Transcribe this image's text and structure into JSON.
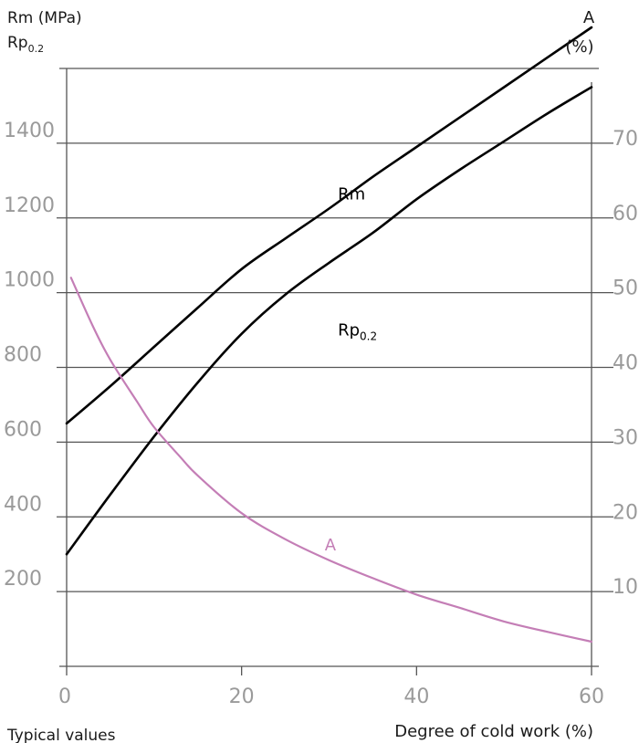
{
  "chart_data": {
    "type": "line",
    "xlabel": "Degree of cold work (%)",
    "footnote": "Typical values",
    "ylabel_left": {
      "line1": "Rm (MPa)",
      "line2_base": "Rp",
      "line2_sub": "0.2"
    },
    "ylabel_right": {
      "line1": "A",
      "line2": "(%)"
    },
    "xlim": [
      0,
      60
    ],
    "ylim_left": [
      0,
      1600
    ],
    "ylim_right": [
      0,
      80
    ],
    "grid": true,
    "x_ticks": [
      0,
      20,
      40,
      60
    ],
    "y_left_ticks": [
      200,
      400,
      600,
      800,
      1000,
      1200,
      1400
    ],
    "y_right_ticks": [
      10,
      20,
      30,
      40,
      50,
      60,
      70
    ],
    "series": [
      {
        "name": "Rm",
        "axis": "left",
        "color": "#000000",
        "label": {
          "base": "Rm",
          "sub": "",
          "x": 31,
          "y": 1250
        },
        "x": [
          0,
          5,
          10,
          15,
          20,
          25,
          30,
          35,
          40,
          45,
          50,
          55,
          60
        ],
        "y": [
          650,
          750,
          855,
          960,
          1063,
          1145,
          1225,
          1310,
          1390,
          1470,
          1550,
          1630,
          1710
        ]
      },
      {
        "name": "Rp0.2",
        "axis": "left",
        "color": "#000000",
        "label": {
          "base": "Rp",
          "sub": "0.2",
          "x": 31,
          "y": 885
        },
        "x": [
          0,
          5,
          10,
          15,
          20,
          25,
          30,
          35,
          40,
          45,
          50,
          55,
          60
        ],
        "y": [
          300,
          460,
          615,
          760,
          890,
          995,
          1080,
          1160,
          1250,
          1330,
          1405,
          1480,
          1550
        ]
      },
      {
        "name": "A",
        "axis": "right",
        "color": "#c47eb6",
        "label": {
          "base": "A",
          "sub": "",
          "x": 29.5,
          "y": 15.5
        },
        "x": [
          0.5,
          3,
          5,
          8,
          10,
          13,
          15,
          20,
          25,
          30,
          35,
          40,
          45,
          50,
          55,
          60
        ],
        "y": [
          52,
          45.5,
          41,
          35.5,
          32,
          28,
          25.5,
          20.5,
          17,
          14.2,
          11.8,
          9.6,
          7.8,
          6.0,
          4.6,
          3.3
        ]
      }
    ]
  }
}
